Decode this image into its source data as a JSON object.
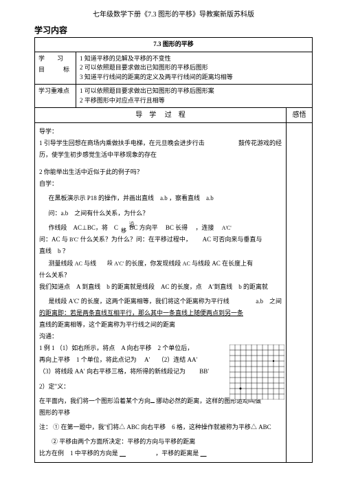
{
  "header": "七年级数学下册《7.3 图形的平移》导教案新版苏科版",
  "section_heading": "学习内容",
  "lesson_title": "7.3 图形的平移",
  "labels": {
    "study": "学　　习",
    "goal": "目　　　标",
    "keypoint": "学习重难点",
    "process_l": "导　学",
    "process_r": "过　程",
    "sense": "感悟"
  },
  "goals": {
    "g1": "1 知道平移的见解及平移的不变性",
    "g2": "2 可以依照题目要求做出已知图形的平移后图形",
    "g3": "3 知道平行线间的距离的定义及两平行线间的距离均相等"
  },
  "keys": {
    "k1": "1 可以依照题目要求做出已知图形的平移后图形案",
    "k2": "2 平移图形中对应点平行且相等"
  },
  "body": {
    "t1": "导学：",
    "t2": "1 引导学生回想在商场内乘做扶手电梯，在元旦晚会进步行击",
    "t2b": "鼓传花游戏的经",
    "t3": "历，使学生初步感觉生活中平移现象的存在",
    "t4": "2 你能举出生活中近似于此的例子吗？",
    "t5": "自学：",
    "t6": "在黑板演示示 P18 的操作，并画出直线　a.b ，察看直线　a.b",
    "t7": "问：a.b　之间有什么关系，为什么？",
    "t8a": "作线段　AC⊥BC，将　C",
    "t8b": "BC 方向平",
    "t8c": "BC 长得",
    "t8d": "，连接",
    "t8e": "A'C'",
    "t8v": "沿移",
    "t9a": "问：AC 与",
    "t9b": "B'C'",
    "t9c": "什么关系？为什么？问：在平移过程中，",
    "t9d": "AC 可否向来与垂直与",
    "t10": "直线　b ？",
    "t11a": "测量线段",
    "t11b": "AC",
    "t11c": "与线",
    "t11d": "A'C'",
    "t11e": "的长度，你发现线段",
    "t11f": "AC",
    "t11g": "与线段",
    "t11h": "AC 在长度上有",
    "t11v": "段",
    "t12": "什么关系？",
    "t13": "我们知道点　A 到直线　b 的距离就是线段　AC 的长度，点　A′到直线　b 的距离就",
    "t14a": "是线段 A'C' 的长度，这两个距离相等，我们将这个距离称为平行线",
    "t14b": "a.b　之间",
    "t15": "的距离即：若是两条直线互相平行，那么其中一条直线上随便两点到另一条",
    "t16": "直线的距离相等，这个距离称为平行线之间的距离",
    "t17": "沟通：",
    "t18": "1 例 1 （1）如右所示，将点　A 向右平移　2 个单位后，",
    "t19a": "再向上平移　1 个单位，将此点记为",
    "t19b": "A′",
    "t19c": "（2）连结 AA′",
    "t20a": "（3）将线段 AA′ 向右平移三格，将所得的新线段记为",
    "t20b": "BB′",
    "t21": "2）定\"义：",
    "t22a": "在平面内，我们将一个图形沿着某个方向",
    "t22b": "挪动必然的距离，这样的图形运动叫做",
    "t23": "图形的平移",
    "t24": "注： ① 在第一题中，我\"们将△ ABC 向右平移　6 格，这种操作就被称为平移△ ABC",
    "t25": "② 平移由两个方面所决定：平移的方向与平移的距离",
    "t26a": "比方在例　1 中平移的方向是",
    "t26b": "，平移的距离是"
  },
  "grid": {
    "cols": 10,
    "rows": 10,
    "cell": 8,
    "stroke": "#000000",
    "bg": "#ffffff"
  }
}
